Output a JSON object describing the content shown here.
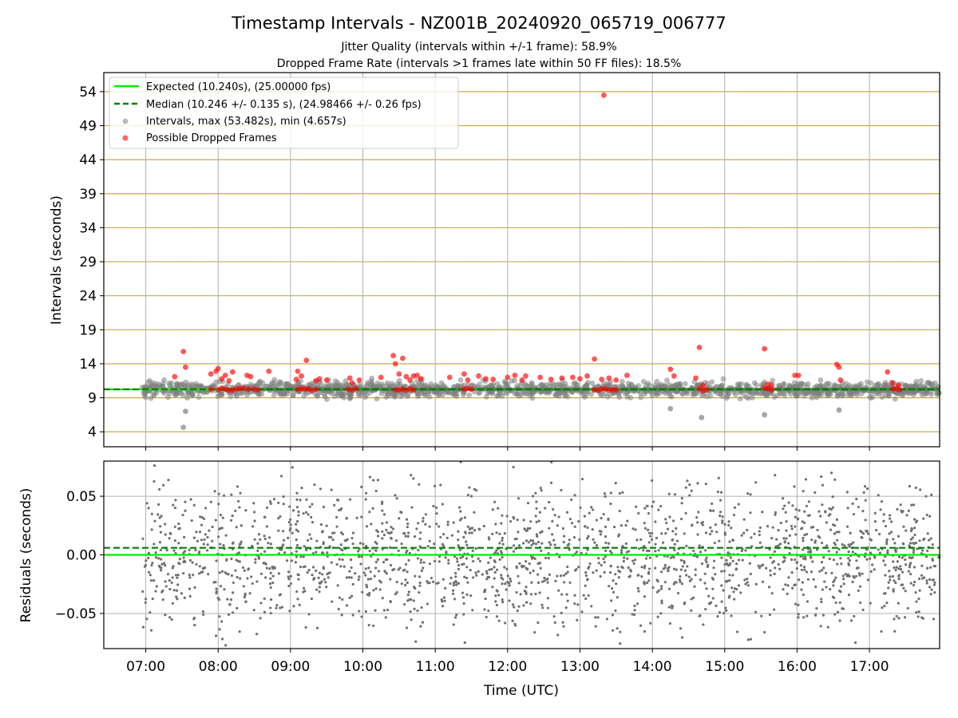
{
  "title": "Timestamp Intervals - NZ001B_20240920_065719_006777",
  "subtitle_1": "Jitter Quality (intervals within +/-1 frame): 58.9%",
  "subtitle_2": "Dropped Frame Rate (intervals >1 frames late within 50 FF files): 18.5%",
  "colors": {
    "expected": "#00ee00",
    "median": "#007f00",
    "intervals": "#808080",
    "dropped": "#ff0000",
    "hgrid_top": "#c8a850",
    "grid": "#b0b0b0"
  },
  "chart_data": [
    {
      "type": "scatter",
      "panel": "intervals",
      "ylabel": "Intervals (seconds)",
      "xlabel": "",
      "x_range_hours": [
        6.42,
        17.97
      ],
      "ylim": [
        1.8,
        56.8
      ],
      "y_ticks": [
        4,
        9,
        14,
        19,
        24,
        29,
        34,
        39,
        44,
        49,
        54
      ],
      "grid": true,
      "legend_placement": "top-left",
      "legend": [
        "Expected (10.240s), (25.00000 fps)",
        "Median (10.246 +/- 0.135 s), (24.98466 +/- 0.26 fps)",
        "Intervals, max (53.482s), min (4.657s)",
        "Possible Dropped Frames"
      ],
      "expected_value": 10.24,
      "median_value": 10.246,
      "series": [
        {
          "name": "Intervals, max (53.482s), min (4.657s)",
          "note": "dense band of ~1500 points between ~8 and ~12 s across 06:57-17:58",
          "extremes": [
            {
              "x": 7.52,
              "y": 4.66
            },
            {
              "x": 14.68,
              "y": 6.1
            },
            {
              "x": 15.55,
              "y": 6.5
            },
            {
              "x": 7.55,
              "y": 7.0
            },
            {
              "x": 14.25,
              "y": 7.4
            },
            {
              "x": 16.58,
              "y": 7.2
            }
          ]
        },
        {
          "name": "Possible Dropped Frames",
          "x": [
            7.4,
            7.52,
            7.55,
            7.9,
            7.97,
            8.0,
            8.05,
            8.1,
            8.15,
            8.2,
            8.4,
            8.45,
            8.7,
            9.08,
            9.1,
            9.15,
            9.22,
            9.35,
            9.4,
            9.5,
            9.82,
            9.85,
            9.95,
            10.25,
            10.42,
            10.45,
            10.5,
            10.55,
            10.6,
            10.65,
            10.7,
            10.75,
            10.8,
            11.2,
            11.4,
            11.45,
            11.6,
            11.7,
            11.8,
            12.0,
            12.1,
            12.2,
            12.25,
            12.45,
            12.6,
            12.75,
            12.9,
            13.0,
            13.1,
            13.2,
            13.3,
            13.33,
            13.4,
            13.5,
            13.65,
            14.25,
            14.3,
            14.6,
            14.65,
            14.7,
            15.55,
            15.6,
            15.65,
            15.97,
            16.02,
            16.55,
            16.58,
            16.6,
            17.25,
            17.32,
            17.4
          ],
          "y": [
            12.1,
            15.8,
            13.5,
            12.5,
            12.9,
            13.3,
            11.8,
            12.3,
            11.5,
            12.8,
            12.3,
            12.1,
            12.9,
            11.7,
            12.9,
            12.2,
            14.5,
            11.5,
            11.8,
            11.6,
            11.9,
            11.2,
            11.6,
            12.0,
            15.2,
            14.0,
            12.5,
            14.8,
            12.1,
            11.6,
            12.2,
            12.3,
            11.8,
            12.0,
            12.5,
            11.6,
            12.2,
            11.8,
            11.7,
            12.0,
            12.3,
            11.6,
            12.2,
            12.0,
            11.7,
            11.9,
            12.0,
            11.8,
            12.2,
            14.7,
            11.7,
            53.48,
            11.9,
            11.6,
            12.3,
            13.2,
            12.2,
            11.9,
            16.4,
            10.8,
            16.2,
            11.0,
            10.9,
            12.3,
            12.3,
            13.9,
            13.5,
            11.6,
            12.8,
            11.2,
            10.8
          ]
        }
      ]
    },
    {
      "type": "scatter",
      "panel": "residuals",
      "ylabel": "Residuals (seconds)",
      "xlabel": "Time (UTC)",
      "x_tick_labels": [
        "07:00",
        "08:00",
        "09:00",
        "10:00",
        "11:00",
        "12:00",
        "13:00",
        "14:00",
        "15:00",
        "16:00",
        "17:00"
      ],
      "x_tick_hours": [
        7,
        8,
        9,
        10,
        11,
        12,
        13,
        14,
        15,
        16,
        17
      ],
      "y_tick_labels": [
        "0.05",
        "0.00",
        "−0.05"
      ],
      "y_ticks": [
        0.05,
        0.0,
        -0.05
      ],
      "ylim": [
        -0.08,
        0.08
      ],
      "grid": true,
      "expected_value": 0.0,
      "median_value": 0.006,
      "series": [
        {
          "name": "",
          "note": "~2000 residual points spread roughly uniformly between -0.08 and 0.08 s, denser near 0"
        }
      ]
    }
  ]
}
